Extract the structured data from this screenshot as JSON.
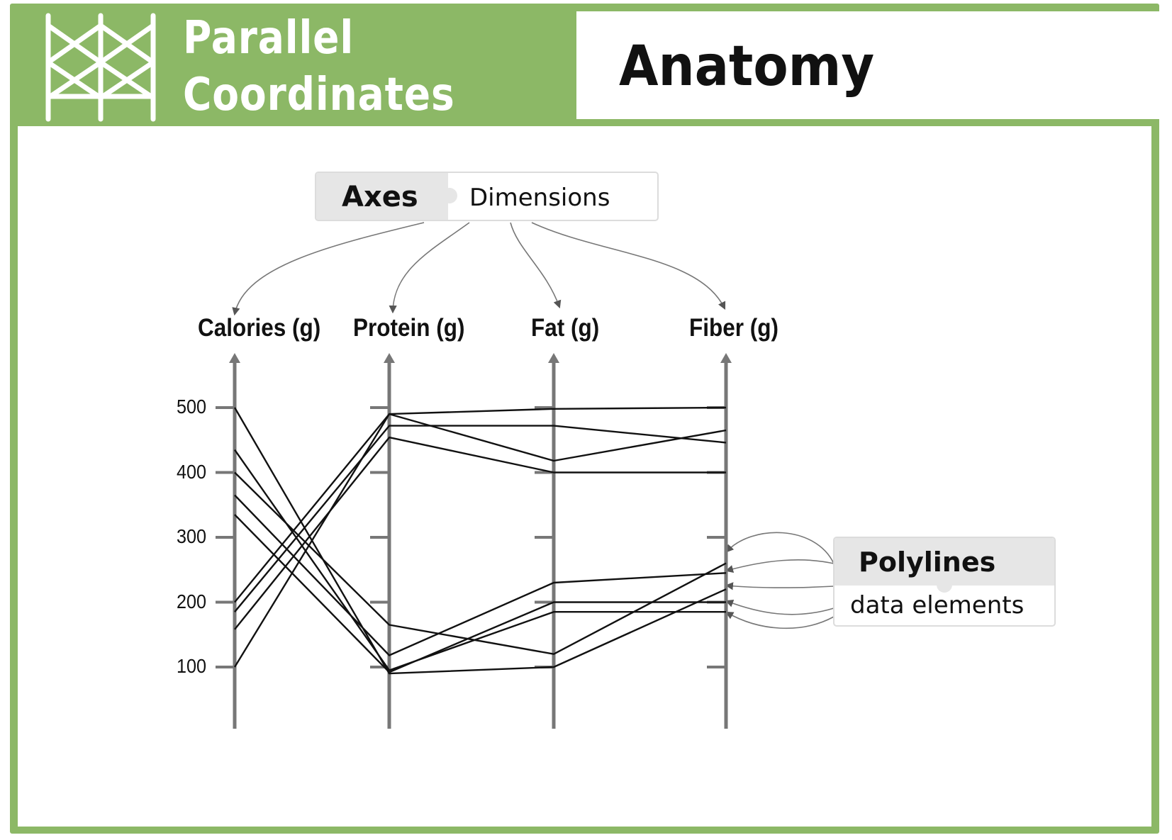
{
  "header": {
    "title_line_1": "Parallel",
    "title_line_2": "Coordinates",
    "subtitle": "Anatomy"
  },
  "callouts": {
    "axes": {
      "term": "Axes",
      "meaning": "Dimensions"
    },
    "polylines": {
      "term": "Polylines",
      "meaning": "data elements"
    }
  },
  "colors": {
    "frame": "#8cb866",
    "axis": "#777777",
    "line": "#111111",
    "callout_head": "#e6e6e6"
  },
  "chart_data": {
    "type": "parallel-coordinates",
    "dimensions": [
      "Calories (g)",
      "Protein (g)",
      "Fat (g)",
      "Fiber (g)"
    ],
    "tick_labels": [
      "500",
      "400",
      "300",
      "200",
      "100"
    ],
    "ticks": [
      500,
      400,
      300,
      200,
      100
    ],
    "range": [
      0,
      550
    ],
    "polylines": [
      [
        500,
        90,
        100,
        220
      ],
      [
        435,
        95,
        185,
        185
      ],
      [
        400,
        165,
        120,
        260
      ],
      [
        365,
        118,
        230,
        245
      ],
      [
        335,
        92,
        200,
        200
      ],
      [
        200,
        490,
        498,
        500
      ],
      [
        185,
        472,
        472,
        446
      ],
      [
        158,
        454,
        400,
        400
      ],
      [
        100,
        490,
        418,
        465
      ]
    ]
  }
}
